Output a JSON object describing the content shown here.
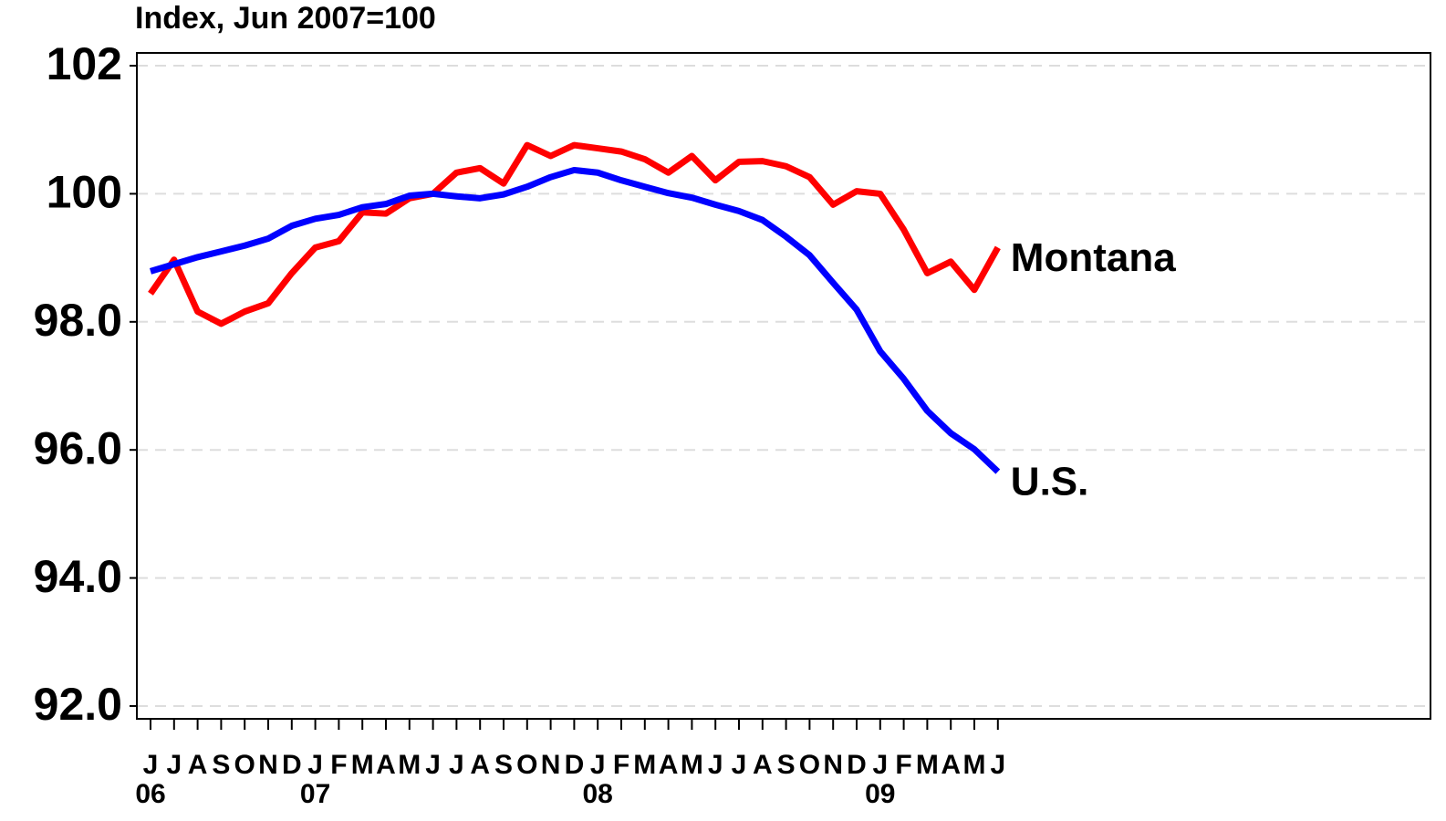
{
  "chart_data": {
    "type": "line",
    "title": "Index, Jun 2007=100",
    "categories": [
      "J",
      "J",
      "A",
      "S",
      "O",
      "N",
      "D",
      "J",
      "F",
      "M",
      "A",
      "M",
      "J",
      "J",
      "A",
      "S",
      "O",
      "N",
      "D",
      "J",
      "F",
      "M",
      "A",
      "M",
      "J",
      "J",
      "A",
      "S",
      "O",
      "N",
      "D",
      "J",
      "F",
      "M",
      "A",
      "M",
      "J"
    ],
    "category_years": [
      "06",
      null,
      null,
      null,
      null,
      null,
      null,
      "07",
      null,
      null,
      null,
      null,
      null,
      null,
      null,
      null,
      null,
      null,
      null,
      "08",
      null,
      null,
      null,
      null,
      null,
      null,
      null,
      null,
      null,
      null,
      null,
      "09",
      null,
      null,
      null,
      null,
      null
    ],
    "series": [
      {
        "name": "Montana",
        "color": "#ff0000",
        "values": [
          98.44,
          98.97,
          98.16,
          97.97,
          98.16,
          98.29,
          98.76,
          99.16,
          99.26,
          99.71,
          99.69,
          99.93,
          100,
          100.33,
          100.4,
          100.16,
          100.76,
          100.59,
          100.76,
          100.71,
          100.66,
          100.54,
          100.33,
          100.59,
          100.21,
          100.5,
          100.51,
          100.43,
          100.26,
          99.83,
          100.04,
          100.0,
          99.44,
          98.76,
          98.94,
          98.5,
          99.16
        ]
      },
      {
        "name": "U.S.",
        "color": "#0000ff",
        "values": [
          98.79,
          98.9,
          99.01,
          99.1,
          99.19,
          99.3,
          99.5,
          99.61,
          99.67,
          99.79,
          99.84,
          99.97,
          100,
          99.96,
          99.93,
          99.99,
          100.11,
          100.26,
          100.37,
          100.33,
          100.21,
          100.11,
          100.01,
          99.94,
          99.83,
          99.73,
          99.59,
          99.33,
          99.04,
          98.61,
          98.19,
          97.54,
          97.11,
          96.61,
          96.26,
          96.01,
          95.66
        ]
      }
    ],
    "ylim": [
      91.8,
      102.2
    ],
    "yticks": [
      {
        "value": 92,
        "label": "92.0"
      },
      {
        "value": 94,
        "label": "94.0"
      },
      {
        "value": 96,
        "label": "96.0"
      },
      {
        "value": 98,
        "label": "98.0"
      },
      100,
      102
    ],
    "grid": true
  }
}
